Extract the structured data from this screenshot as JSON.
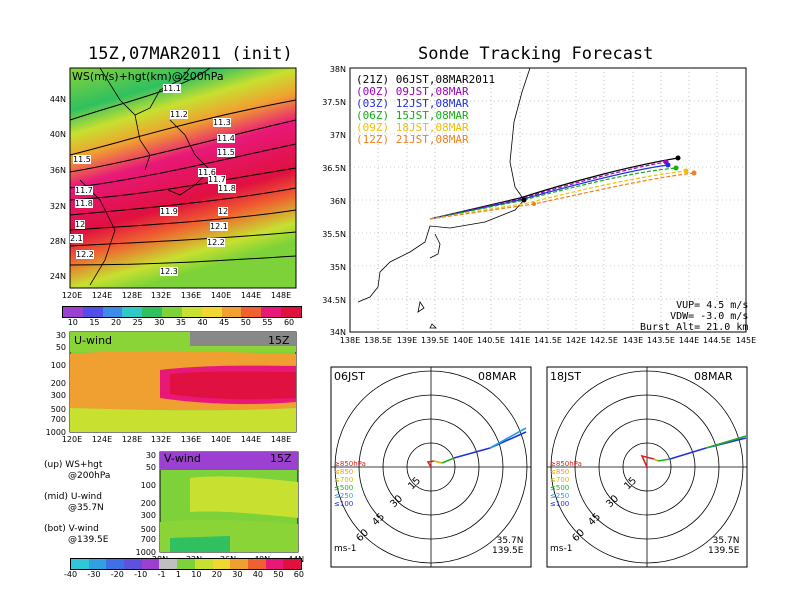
{
  "left_panel": {
    "title": "15Z,07MAR2011 (init)",
    "top_map": {
      "label": "WS(m/s)+hgt(km)@200hPa",
      "lat_ticks": [
        "44N",
        "40N",
        "36N",
        "32N",
        "28N",
        "24N"
      ],
      "lon_ticks": [
        "120E",
        "124E",
        "128E",
        "132E",
        "136E",
        "140E",
        "144E",
        "148E"
      ],
      "contour_labels": [
        "11.1",
        "11.2",
        "11.3",
        "11.4",
        "11.5",
        "11.5",
        "11.6",
        "11.7",
        "11.8",
        "11.7",
        "11.8",
        "11.9",
        "12",
        "12",
        "12.1",
        "2.1",
        "12.2",
        "12.2",
        "12.3"
      ],
      "colorbar_ticks": [
        "10",
        "15",
        "20",
        "25",
        "30",
        "35",
        "40",
        "45",
        "50",
        "55",
        "60"
      ],
      "colorbar_colors": [
        "#9b40d0",
        "#5050e8",
        "#3c8ce8",
        "#30c8c8",
        "#30c060",
        "#7cd238",
        "#c8e030",
        "#f0d830",
        "#f0a030",
        "#f06030",
        "#e81878",
        "#e01040"
      ]
    },
    "u_panel": {
      "label": "U-wind",
      "time": "15Z",
      "p_ticks": [
        "30",
        "50",
        "100",
        "200",
        "300",
        "500",
        "700",
        "1000"
      ],
      "lon_ticks": [
        "120E",
        "124E",
        "128E",
        "132E",
        "136E",
        "140E",
        "144E",
        "148E"
      ]
    },
    "v_panel": {
      "label": "V-wind",
      "time": "15Z",
      "p_ticks": [
        "30",
        "50",
        "100",
        "200",
        "300",
        "500",
        "700",
        "1000"
      ],
      "lat_ticks": [
        "28N",
        "32N",
        "36N",
        "40N",
        "44N"
      ]
    },
    "notes": [
      {
        "a": "(up) WS+hgt",
        "b": "@200hPa"
      },
      {
        "a": "(mid) U-wind",
        "b": "@35.7N"
      },
      {
        "a": "(bot) V-wind",
        "b": "@139.5E"
      }
    ],
    "bottom_colorbar_ticks": [
      "-40",
      "-30",
      "-20",
      "-10",
      "-1",
      "1",
      "10",
      "20",
      "30",
      "40",
      "50",
      "60"
    ]
  },
  "right_panel": {
    "title": "Sonde Tracking Forecast",
    "tracking_map": {
      "lat_ticks": [
        "38N",
        "37.5N",
        "37N",
        "36.5N",
        "36N",
        "35.5N",
        "35N",
        "34.5N",
        "34N"
      ],
      "lon_ticks": [
        "138E",
        "138.5E",
        "139E",
        "139.5E",
        "140E",
        "140.5E",
        "141E",
        "141.5E",
        "142E",
        "142.5E",
        "143E",
        "143.5E",
        "144E",
        "144.5E",
        "145E"
      ],
      "legend": [
        {
          "text": "(21Z) 06JST,08MAR2011",
          "color": "#000000"
        },
        {
          "text": "(00Z) 09JST,08MAR",
          "color": "#a000c0"
        },
        {
          "text": "(03Z) 12JST,08MAR",
          "color": "#2030e0"
        },
        {
          "text": "(06Z) 15JST,08MAR",
          "color": "#10b010"
        },
        {
          "text": "(09Z) 18JST,08MAR",
          "color": "#f0c000"
        },
        {
          "text": "(12Z) 21JST,08MAR",
          "color": "#f08020"
        }
      ],
      "params": [
        "VUP= 4.5 m/s",
        "VDW= -3.0 m/s",
        "Burst Alt= 21.0 km"
      ]
    },
    "hodographs": [
      {
        "time": "06JST",
        "date": "08MAR",
        "ring_labels": [
          "15",
          "30",
          "45",
          "60"
        ],
        "levels": [
          {
            "t": "≥850hPa",
            "c": "#e02020"
          },
          {
            "t": "≤850",
            "c": "#f0a000"
          },
          {
            "t": "≤700",
            "c": "#d0c000"
          },
          {
            "t": "≤500",
            "c": "#20b020"
          },
          {
            "t": "≤250",
            "c": "#20a0e0"
          },
          {
            "t": "≤100",
            "c": "#2030e0"
          }
        ],
        "unit": "ms-1",
        "lat": "35.7N",
        "lon": "139.5E"
      },
      {
        "time": "18JST",
        "date": "08MAR",
        "ring_labels": [
          "15",
          "30",
          "45",
          "60"
        ],
        "levels": [
          {
            "t": "≥850hPa",
            "c": "#e02020"
          },
          {
            "t": "≤850",
            "c": "#f0a000"
          },
          {
            "t": "≤700",
            "c": "#d0c000"
          },
          {
            "t": "≤500",
            "c": "#20b020"
          },
          {
            "t": "≤250",
            "c": "#20a0e0"
          },
          {
            "t": "≤100",
            "c": "#2030e0"
          }
        ],
        "unit": "ms-1",
        "lat": "35.7N",
        "lon": "139.5E"
      }
    ]
  }
}
